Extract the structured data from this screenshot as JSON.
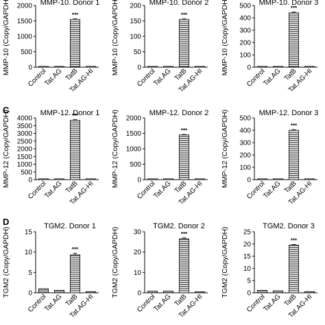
{
  "panel_labels": [
    "C",
    "D"
  ],
  "chart_data": [
    {
      "type": "bar",
      "row": 0,
      "col": 0,
      "title": "MMP-10. Donor 1",
      "ylabel": "MMP-10 (Copy/GAPDH)",
      "categories": [
        "Control",
        "Tat.AG",
        "TatB",
        "Tat.AG-HI"
      ],
      "values": [
        1,
        1,
        1550,
        1
      ],
      "errors": [
        0,
        0,
        20,
        0
      ],
      "ylim": [
        0,
        2000
      ],
      "yticks": [
        "0",
        "500",
        "1000",
        "1500",
        "2000"
      ],
      "annotations": [
        {
          "category": "TatB",
          "text": "***"
        }
      ]
    },
    {
      "type": "bar",
      "row": 0,
      "col": 1,
      "title": "MMP-10. Donor 2",
      "ylabel": "MMP-10 (Copy/GAPDH)",
      "categories": [
        "Control",
        "Tat.AG",
        "TatB",
        "Tat.AG-HI"
      ],
      "values": [
        0.5,
        0.5,
        155,
        0.5
      ],
      "errors": [
        0,
        0,
        2,
        0
      ],
      "ylim": [
        0,
        200
      ],
      "yticks": [
        "0",
        "50",
        "100",
        "150",
        "200"
      ],
      "annotations": [
        {
          "category": "TatB",
          "text": "***"
        }
      ]
    },
    {
      "type": "bar",
      "row": 0,
      "col": 2,
      "title": "MMP-10. Donor 3",
      "ylabel": "MMP-10 (Copy/GAPDH)",
      "categories": [
        "Control",
        "Tat.AG",
        "TatB",
        "Tat.AG-HI"
      ],
      "values": [
        1,
        1,
        440,
        1
      ],
      "errors": [
        0,
        0,
        8,
        0
      ],
      "ylim": [
        0,
        500
      ],
      "yticks": [
        "0",
        "100",
        "200",
        "300",
        "400",
        "500"
      ],
      "annotations": [
        {
          "category": "TatB",
          "text": "***"
        }
      ]
    },
    {
      "type": "bar",
      "row": 1,
      "col": 0,
      "title": "MMP-12. Donor 1",
      "ylabel": "MMP-12 (Copy/GAPDH)",
      "categories": [
        "Control",
        "Tat.AG",
        "TatB",
        "Tat.AG-HI"
      ],
      "values": [
        1,
        1,
        3850,
        1
      ],
      "errors": [
        0,
        0,
        50,
        0
      ],
      "ylim": [
        0,
        4000
      ],
      "yticks": [
        "0",
        "500",
        "1000",
        "1500",
        "2000",
        "2500",
        "3000",
        "3500",
        "4000"
      ],
      "annotations": [
        {
          "category": "TatB",
          "text": "***"
        }
      ]
    },
    {
      "type": "bar",
      "row": 1,
      "col": 1,
      "title": "MMP-12. Donor 2",
      "ylabel": "MMP-12 (Copy/GAPDH)",
      "categories": [
        "Control",
        "Tat.AG",
        "TatB",
        "Tat.AG-HI"
      ],
      "values": [
        1,
        1,
        1450,
        1
      ],
      "errors": [
        0,
        0,
        15,
        0
      ],
      "ylim": [
        0,
        2000
      ],
      "yticks": [
        "0",
        "500",
        "1000",
        "1500",
        "2000"
      ],
      "annotations": [
        {
          "category": "TatB",
          "text": "***"
        }
      ]
    },
    {
      "type": "bar",
      "row": 1,
      "col": 2,
      "title": "MMP-12. Donor 3",
      "ylabel": "MMP-12 (Copy/GAPDH)",
      "categories": [
        "Control",
        "Tat.AG",
        "TatB",
        "Tat.AG-HI"
      ],
      "values": [
        1,
        1,
        400,
        1
      ],
      "errors": [
        0,
        0,
        5,
        0
      ],
      "ylim": [
        0,
        500
      ],
      "yticks": [
        "0",
        "100",
        "200",
        "300",
        "400",
        "500"
      ],
      "annotations": [
        {
          "category": "TatB",
          "text": "***"
        }
      ]
    },
    {
      "type": "bar",
      "row": 2,
      "col": 0,
      "title": "TGM2. Donor 1",
      "ylabel": "TGM2 (Copy/GAPDH)",
      "categories": [
        "Control",
        "Tat.AG",
        "TatB",
        "Tat.AG-HI"
      ],
      "values": [
        1,
        0.6,
        9.3,
        0.3
      ],
      "errors": [
        0.05,
        0.05,
        0.4,
        0.05
      ],
      "ylim": [
        0,
        15
      ],
      "yticks": [
        "0",
        "5",
        "10",
        "15"
      ],
      "annotations": [
        {
          "category": "TatB",
          "text": "***"
        }
      ]
    },
    {
      "type": "bar",
      "row": 2,
      "col": 1,
      "title": "TGM2. Donor 2",
      "ylabel": "TGM2 (Copy/GAPDH)",
      "categories": [
        "Control",
        "Tat.AG",
        "TatB",
        "Tat.AG-HI"
      ],
      "values": [
        0.8,
        0.8,
        26.5,
        0.5
      ],
      "errors": [
        0.05,
        0.05,
        0.5,
        0.05
      ],
      "ylim": [
        0,
        30
      ],
      "yticks": [
        "0",
        "10",
        "20",
        "30"
      ],
      "annotations": [
        {
          "category": "TatB",
          "text": "***"
        }
      ]
    },
    {
      "type": "bar",
      "row": 2,
      "col": 2,
      "title": "TGM2. Donor 3",
      "ylabel": "TGM2 (Copy/GAPDH)",
      "categories": [
        "Control",
        "Tat.AG",
        "TatB",
        "Tat.AG-HI"
      ],
      "values": [
        1,
        0.8,
        19.5,
        0.5
      ],
      "errors": [
        0.05,
        0.05,
        0.3,
        0.05
      ],
      "ylim": [
        0,
        25
      ],
      "yticks": [
        "0",
        "5",
        "10",
        "15",
        "20",
        "25"
      ],
      "annotations": [
        {
          "category": "TatB",
          "text": "***"
        }
      ]
    }
  ]
}
